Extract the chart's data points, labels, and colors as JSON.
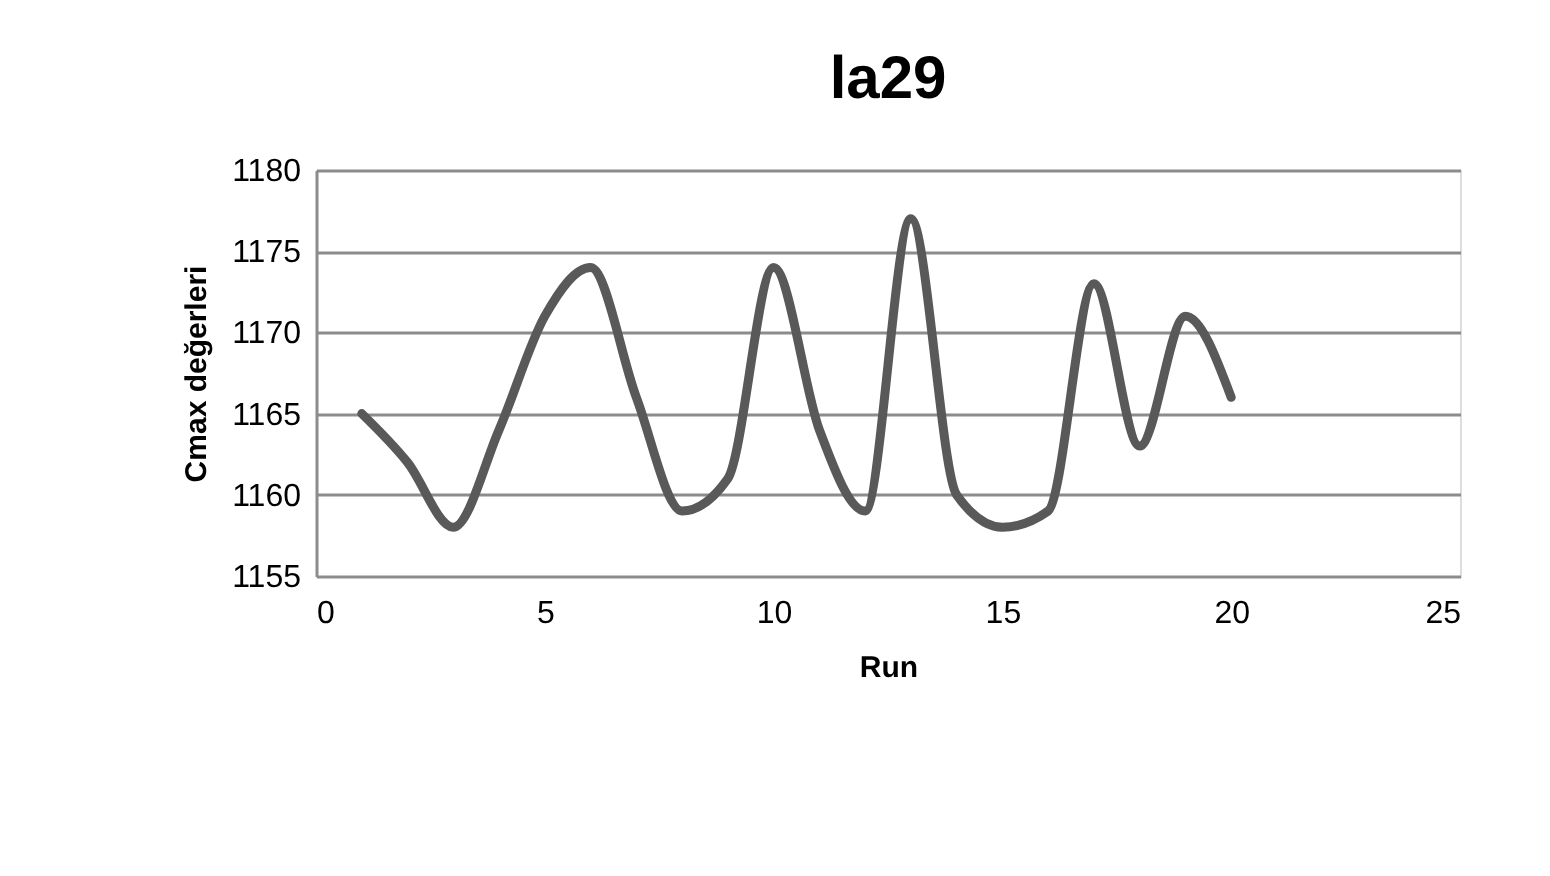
{
  "chart_data": {
    "type": "line",
    "title": "la29",
    "xlabel": "Run",
    "ylabel": "Cmax değerleri",
    "x": [
      1,
      2,
      3,
      4,
      5,
      6,
      7,
      8,
      9,
      10,
      11,
      12,
      13,
      14,
      15,
      16,
      17,
      18,
      19,
      20
    ],
    "series": [
      {
        "color": "#595959",
        "values": [
          1165,
          1162,
          1158,
          1164,
          1171,
          1174,
          1166,
          1159,
          1161,
          1174,
          1164,
          1159,
          1177,
          1160,
          1158,
          1159,
          1173,
          1163,
          1171,
          1166
        ]
      }
    ],
    "xlim": [
      0,
      25
    ],
    "xticks": [
      0,
      5,
      10,
      15,
      20,
      25
    ],
    "ylim": [
      1155,
      1180
    ],
    "yticks": [
      1155,
      1160,
      1165,
      1170,
      1175,
      1180
    ],
    "grid": "y",
    "marker": "none",
    "line_style": "solid"
  }
}
